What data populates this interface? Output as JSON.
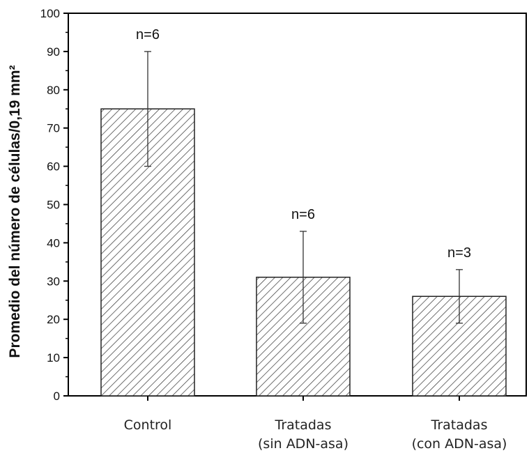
{
  "chart_data": {
    "type": "bar",
    "categories": [
      [
        "Control"
      ],
      [
        "Tratadas",
        "(sin ADN-asa)"
      ],
      [
        "Tratadas",
        "(con ADN-asa)"
      ]
    ],
    "values": [
      75,
      31,
      26
    ],
    "error_low": [
      60,
      19,
      19
    ],
    "error_high": [
      90,
      43,
      33
    ],
    "annotations": [
      "n=6",
      "n=6",
      "n=3"
    ],
    "ylabel": "Promedio del número de células/0,19 mm²",
    "xlabel": "",
    "ylim": [
      0,
      100
    ],
    "yticks": [
      0,
      10,
      20,
      30,
      40,
      50,
      60,
      70,
      80,
      90,
      100
    ],
    "bar_fill": "hatched",
    "colors": {
      "bar_stroke": "#222222",
      "hatch": "#333333",
      "axis": "#000000"
    }
  }
}
